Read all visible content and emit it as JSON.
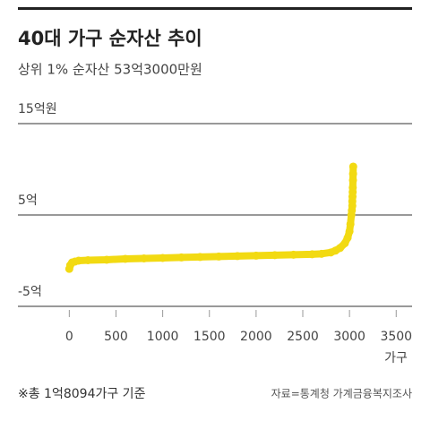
{
  "chart_data": {
    "type": "scatter",
    "title": "40대 가구 순자산 추이",
    "subtitle": "상위 1% 순자산 53억3000만원",
    "x_label": "가구",
    "note": "※총 1억8094가구 기준",
    "source": "자료=통계청 가계금융복지조사",
    "color": "#f2da12",
    "xlim": [
      -550,
      3670
    ],
    "ylim": [
      -5,
      15
    ],
    "xticks": [
      0,
      500,
      1000,
      1500,
      2000,
      2500,
      3000,
      3500
    ],
    "yticks": [
      {
        "value": -5,
        "label": "-5억"
      },
      {
        "value": 5,
        "label": "5억"
      },
      {
        "value": 15,
        "label": "15억원"
      }
    ],
    "grid": true,
    "x": [
      0,
      10,
      30,
      60,
      100,
      200,
      400,
      600,
      800,
      1000,
      1200,
      1400,
      1600,
      1800,
      2000,
      2200,
      2400,
      2600,
      2700,
      2800,
      2850,
      2900,
      2950,
      2980,
      3000,
      3010,
      3020,
      3025,
      3030,
      3030,
      3032,
      3034,
      3035,
      3037,
      3038,
      3040
    ],
    "values": [
      -0.9,
      -0.5,
      -0.2,
      -0.1,
      0.0,
      0.05,
      0.1,
      0.2,
      0.25,
      0.3,
      0.35,
      0.4,
      0.45,
      0.5,
      0.55,
      0.6,
      0.65,
      0.7,
      0.75,
      0.9,
      1.1,
      1.4,
      1.9,
      2.5,
      3.2,
      4.0,
      5.0,
      5.5,
      6.0,
      6.5,
      7.0,
      7.5,
      8.0,
      8.8,
      9.5,
      10.3
    ]
  }
}
